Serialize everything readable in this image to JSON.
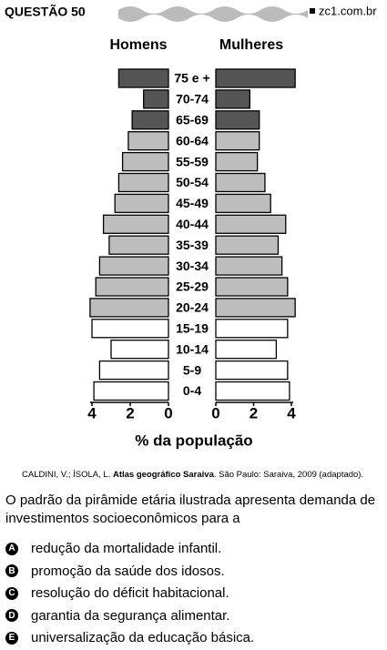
{
  "header": {
    "title": "QUESTÃO 50",
    "site": "zc1.com.br"
  },
  "chart_data": {
    "type": "pyramid",
    "categories": [
      "75 e +",
      "70-74",
      "65-69",
      "60-64",
      "55-59",
      "50-54",
      "45-49",
      "40-44",
      "35-39",
      "30-34",
      "25-29",
      "20-24",
      "15-19",
      "10-14",
      "5-9",
      "0-4"
    ],
    "colors": [
      "#555555",
      "#555555",
      "#555555",
      "#bdbdbd",
      "#bdbdbd",
      "#bdbdbd",
      "#bdbdbd",
      "#bdbdbd",
      "#bdbdbd",
      "#bdbdbd",
      "#bdbdbd",
      "#bdbdbd",
      "#ffffff",
      "#ffffff",
      "#ffffff",
      "#ffffff"
    ],
    "series": [
      {
        "name": "Homens",
        "values": [
          2.6,
          1.3,
          1.9,
          2.1,
          2.4,
          2.6,
          2.8,
          3.4,
          3.1,
          3.6,
          3.8,
          4.1,
          4.0,
          3.0,
          3.6,
          3.9
        ]
      },
      {
        "name": "Mulheres",
        "values": [
          4.2,
          1.8,
          2.3,
          2.3,
          2.2,
          2.6,
          2.9,
          3.7,
          3.3,
          3.5,
          3.8,
          4.2,
          3.8,
          3.2,
          3.8,
          3.9
        ]
      }
    ],
    "xlim": [
      0,
      4
    ],
    "xticks": [
      0,
      2,
      4
    ],
    "x_label": "% da população"
  },
  "source": {
    "authors": "CALDINI, V.; ÍSOLA, L. ",
    "book": "Atlas geográfico Saraiva",
    "rest": ". São Paulo: Saraiva, 2009 (adaptado)."
  },
  "question": "O padrão da pirâmide etária ilustrada apresenta demanda de investimentos socioeconômicos para a",
  "options": [
    {
      "letter": "A",
      "text": "redução da mortalidade infantil."
    },
    {
      "letter": "B",
      "text": "promoção da saúde dos idosos."
    },
    {
      "letter": "C",
      "text": "resolução do déficit habitacional."
    },
    {
      "letter": "D",
      "text": "garantia da segurança alimentar."
    },
    {
      "letter": "E",
      "text": "universalização da educação básica."
    }
  ]
}
